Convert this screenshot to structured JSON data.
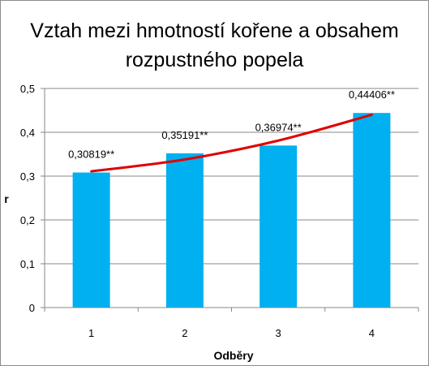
{
  "chart_data": {
    "type": "bar",
    "title_lines": [
      "Vztah mezi hmotností kořene a obsahem",
      "rozpustného popela"
    ],
    "categories": [
      "1",
      "2",
      "3",
      "4"
    ],
    "values": [
      0.30819,
      0.35191,
      0.36974,
      0.44406
    ],
    "data_labels": [
      "0,30819**",
      "0,35191**",
      "0,36974**",
      "0,44406**"
    ],
    "xlabel": "Odběry",
    "ylabel": "r",
    "ylim": [
      0,
      0.5
    ],
    "yticks": [
      0,
      0.1,
      0.2,
      0.3,
      0.4,
      0.5
    ],
    "ytick_labels": [
      "0",
      "0,1",
      "0,2",
      "0,3",
      "0,4",
      "0,5"
    ],
    "grid": "horizontal",
    "legend": "none",
    "trendline": {
      "type": "exponential",
      "values": [
        0.311,
        0.338,
        0.381,
        0.44
      ]
    },
    "colors": {
      "bar": "#00B0F0",
      "trendline": "#E00000",
      "grid": "#878787",
      "axis": "#878787"
    }
  }
}
